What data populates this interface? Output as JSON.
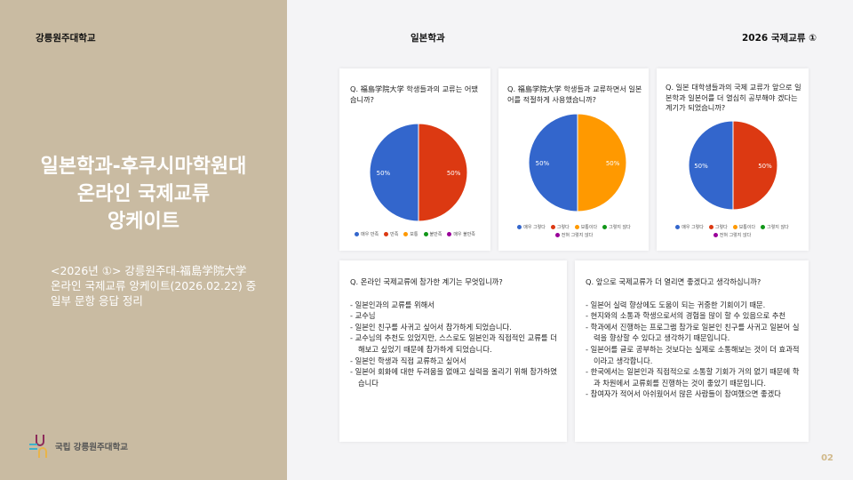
{
  "header": {
    "left": "강릉원주대학교",
    "center": "일본학과",
    "right": "2026 국제교류 ①"
  },
  "left_panel": {
    "title_lines": [
      "일본학과-후쿠시마학원대",
      "온라인 국제교류",
      "앙케이트"
    ],
    "subtitle_lines": [
      "<2026년 ①> 강릉원주대-福島学院大学",
      "온라인 국제교류 앙케이트(2026.02.22) 중",
      "일부 문항 응답 정리"
    ],
    "logo_text": "국립 강릉원주대학교"
  },
  "chart_data": [
    {
      "type": "pie",
      "title": "Q. 福島学院大学 학생들과의 교류는 어땠습니까?",
      "categories": [
        "매우 만족",
        "만족",
        "보통",
        "불만족",
        "매우 불만족"
      ],
      "values": [
        50,
        50,
        0,
        0,
        0
      ],
      "labels": [
        "50%",
        "50%"
      ],
      "colors": [
        "#3366cc",
        "#dc3912",
        "#ff9900",
        "#109618",
        "#990099"
      ],
      "legend": "bottom"
    },
    {
      "type": "pie",
      "title": "Q. 福島学院大学 학생들과 교류하면서 일본어를 적절하게 사용했습니까?",
      "categories": [
        "매우 그렇다",
        "그렇다",
        "보통이다",
        "그렇지 않다",
        "전혀 그렇지 않다"
      ],
      "values": [
        50,
        0,
        50,
        0,
        0
      ],
      "labels": [
        "50%",
        "50%"
      ],
      "colors": [
        "#3366cc",
        "#dc3912",
        "#ff9900",
        "#109618",
        "#990099"
      ],
      "legend": "bottom"
    },
    {
      "type": "pie",
      "title": "Q. 일본 대학생들과의 국제 교류가 앞으로 일본학과 일본어를 더 열심히 공부해야 겠다는 계기가 되었습니까?",
      "categories": [
        "매우 그렇다",
        "그렇다",
        "보통이다",
        "그렇지 않다",
        "전혀 그렇지 않다"
      ],
      "values": [
        50,
        50,
        0,
        0,
        0
      ],
      "labels": [
        "50%",
        "50%"
      ],
      "colors": [
        "#3366cc",
        "#dc3912",
        "#ff9900",
        "#109618",
        "#990099"
      ],
      "legend": "bottom"
    }
  ],
  "q4": {
    "question": "Q. 온라인 국제교류에 참가한 계기는 무엇입니까?",
    "answers": [
      "- 일본인과의 교류를 위해서",
      "- 교수님",
      "- 일본인 친구를 사귀고 싶어서 참가하게 되었습니다.",
      "- 교수님의 추천도 있었지만, 스스로도 일본인과 직접적인 교류를 더 해보고 싶었기 때문에 참가하게 되었습니다.",
      "- 일본인 학생과 직접 교류하고 싶어서",
      "- 일본어 회화에 대한 두려움을 없애고 실력을 올리기 위해 참가하였습니다"
    ]
  },
  "q5": {
    "question": "Q. 앞으로 국제교류가 더 열리면 좋겠다고 생각하십니까?",
    "answers": [
      "- 일본어 실력 향상에도 도움이 되는 귀중한 기회이기 때문.",
      "- 현지와의 소통과 학생으로서의 경험을 많이 할 수 있음으로 추천",
      "- 학과에서 진행하는 프로그램 참가로 일본인 친구를 사귀고 일본어 실력을 향상할 수 있다고 생각하기 때문입니다.",
      "- 일본어를 글로 공부하는 것보다는 실제로 소통해보는 것이 더 효과적이라고 생각합니다.",
      "- 한국에서는 일본인과 직접적으로 소통할 기회가 거의 없기 때문에 학과 차원에서 교류회를 진행하는 것이 좋았기 때문입니다.",
      "- 참여자가 적어서 아쉬웠어서 많은 사람들이 참여했으면 좋겠다"
    ]
  },
  "page_number": "02"
}
